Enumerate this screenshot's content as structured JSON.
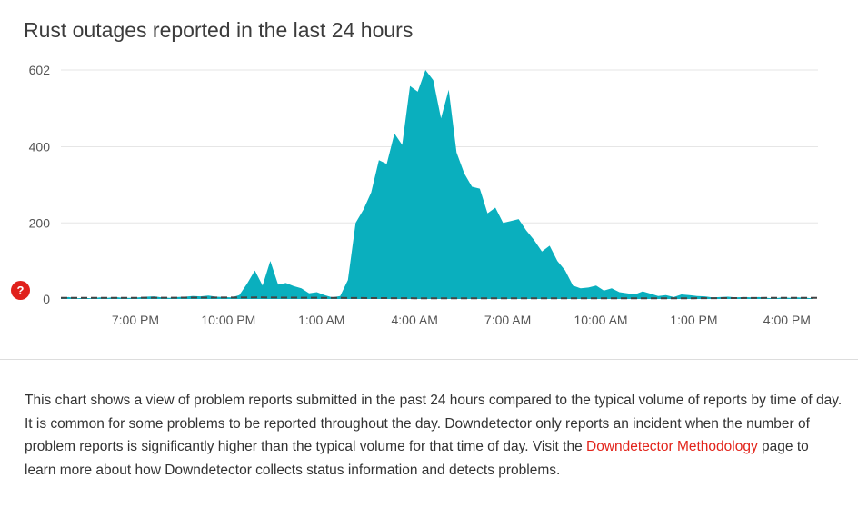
{
  "chart_data": {
    "type": "area",
    "title": "Rust outages reported in the last 24 hours",
    "ylim": [
      0,
      602
    ],
    "yticks": [
      0,
      200,
      400,
      602
    ],
    "grid": true,
    "x_ticks": [
      {
        "label": "7:00 PM",
        "hour": 2
      },
      {
        "label": "10:00 PM",
        "hour": 5
      },
      {
        "label": "1:00 AM",
        "hour": 8
      },
      {
        "label": "4:00 AM",
        "hour": 11
      },
      {
        "label": "7:00 AM",
        "hour": 14
      },
      {
        "label": "10:00 AM",
        "hour": 17
      },
      {
        "label": "1:00 PM",
        "hour": 20
      },
      {
        "label": "4:00 PM",
        "hour": 23
      }
    ],
    "x_range": [
      -0.4,
      24
    ],
    "series": [
      {
        "kind": "reports",
        "color": "#0aafbe",
        "hours": [
          -0.4,
          -0.15,
          0.1,
          0.35,
          0.6,
          0.85,
          1.1,
          1.35,
          1.6,
          1.85,
          2.1,
          2.35,
          2.6,
          2.85,
          3.1,
          3.35,
          3.6,
          3.85,
          4.1,
          4.35,
          4.6,
          4.85,
          5.1,
          5.35,
          5.6,
          5.85,
          6.1,
          6.35,
          6.6,
          6.85,
          7.1,
          7.35,
          7.6,
          7.85,
          8.1,
          8.35,
          8.6,
          8.85,
          9.1,
          9.35,
          9.6,
          9.85,
          10.1,
          10.35,
          10.6,
          10.85,
          11.1,
          11.35,
          11.6,
          11.85,
          12.1,
          12.35,
          12.6,
          12.85,
          13.1,
          13.35,
          13.6,
          13.85,
          14.1,
          14.35,
          14.6,
          14.85,
          15.1,
          15.35,
          15.6,
          15.85,
          16.1,
          16.35,
          16.6,
          16.85,
          17.1,
          17.35,
          17.6,
          17.85,
          18.1,
          18.35,
          18.6,
          18.85,
          19.1,
          19.35,
          19.6,
          19.85,
          20.1,
          20.35,
          20.6,
          20.85,
          21.1,
          21.35,
          21.6,
          21.85,
          22.1,
          22.35,
          22.6,
          22.85,
          23.1,
          23.35,
          23.6,
          23.85
        ],
        "values": [
          3,
          5,
          2,
          3,
          2,
          4,
          3,
          5,
          3,
          3,
          4,
          6,
          7,
          4,
          3,
          5,
          6,
          8,
          7,
          9,
          6,
          5,
          4,
          10,
          40,
          75,
          35,
          100,
          38,
          42,
          34,
          28,
          15,
          18,
          10,
          4,
          8,
          50,
          200,
          235,
          280,
          365,
          355,
          435,
          405,
          560,
          545,
          602,
          575,
          475,
          550,
          385,
          330,
          295,
          290,
          225,
          240,
          200,
          205,
          210,
          180,
          155,
          125,
          140,
          100,
          75,
          35,
          28,
          30,
          35,
          22,
          28,
          18,
          15,
          12,
          20,
          14,
          8,
          10,
          5,
          12,
          10,
          8,
          7,
          4,
          5,
          6,
          4,
          5,
          4,
          5,
          3,
          2,
          4,
          3,
          4,
          3,
          2
        ]
      },
      {
        "kind": "baseline",
        "color": "#444444",
        "hours": [
          -0.4,
          2,
          6,
          8,
          11,
          14,
          17,
          20,
          23,
          24
        ],
        "values": [
          3,
          3,
          4,
          3,
          2,
          2,
          2,
          2,
          3,
          3
        ]
      }
    ]
  },
  "description": {
    "before_link": "This chart shows a view of problem reports submitted in the past 24 hours compared to the typical volume of reports by time of day. It is common for some problems to be reported throughout the day. Downdetector only reports an incident when the number of problem reports is significantly higher than the typical volume for that time of day. Visit the ",
    "link_text": "Downdetector Methodology",
    "after_link": " page to learn more about how Downdetector collects status information and detects problems."
  },
  "help_badge": {
    "label": "?",
    "color": "#e0201b",
    "icon": "help-icon"
  }
}
